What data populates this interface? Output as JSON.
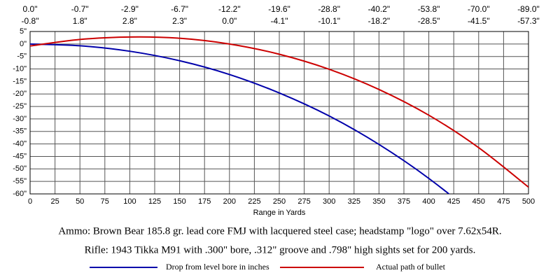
{
  "chart_data": {
    "type": "line",
    "x_label": "Range in Yards",
    "annotations": [
      "Ammo:  Brown Bear 185.8 gr. lead core FMJ with lacquered steel case; headstamp \"logo\" over 7.62x54R.",
      "Rifle:  1943 Tikka M91 with .300\" bore, .312\" groove and .798\" high sights set for 200 yards."
    ],
    "x": [
      0,
      50,
      100,
      150,
      200,
      250,
      300,
      350,
      400,
      450,
      500
    ],
    "series": [
      {
        "name": "Drop from level bore in inches",
        "color": "#0000aa",
        "values": [
          0.0,
          -0.7,
          -2.9,
          -6.7,
          -12.2,
          -19.6,
          -28.8,
          -40.2,
          -53.8,
          -70.0,
          -89.0
        ],
        "value_labels": [
          "0.0\"",
          "-0.7\"",
          "-2.9\"",
          "-6.7\"",
          "-12.2\"",
          "-19.6\"",
          "-28.8\"",
          "-40.2\"",
          "-53.8\"",
          "-70.0\"",
          "-89.0\""
        ]
      },
      {
        "name": "Actual path of bullet",
        "color": "#cc0000",
        "values": [
          -0.8,
          1.8,
          2.8,
          2.3,
          0.0,
          -4.1,
          -10.1,
          -18.2,
          -28.5,
          -41.5,
          -57.3
        ],
        "value_labels": [
          "-0.8\"",
          "1.8\"",
          "2.8\"",
          "2.3\"",
          "0.0\"",
          "-4.1\"",
          "-10.1\"",
          "-18.2\"",
          "-28.5\"",
          "-41.5\"",
          "-57.3\""
        ]
      }
    ],
    "xlim": [
      0,
      500
    ],
    "xticks": [
      0,
      25,
      50,
      75,
      100,
      125,
      150,
      175,
      200,
      225,
      250,
      275,
      300,
      325,
      350,
      375,
      400,
      425,
      450,
      475,
      500
    ],
    "ylim": [
      -60,
      5
    ],
    "yticks": [
      {
        "value": 5,
        "label": "5\""
      },
      {
        "value": 0,
        "label": "0\""
      },
      {
        "value": -5,
        "label": "-5\""
      },
      {
        "value": -10,
        "label": "-10\""
      },
      {
        "value": -15,
        "label": "-15\""
      },
      {
        "value": -20,
        "label": "-20\""
      },
      {
        "value": -25,
        "label": "-25\""
      },
      {
        "value": -30,
        "label": "-30\""
      },
      {
        "value": -35,
        "label": "-35\""
      },
      {
        "value": -40,
        "label": "-40\""
      },
      {
        "value": -45,
        "label": "-45\""
      },
      {
        "value": -50,
        "label": "-50\""
      },
      {
        "value": -55,
        "label": "-55\""
      },
      {
        "value": -60,
        "label": "-60\""
      }
    ],
    "grid": true
  }
}
